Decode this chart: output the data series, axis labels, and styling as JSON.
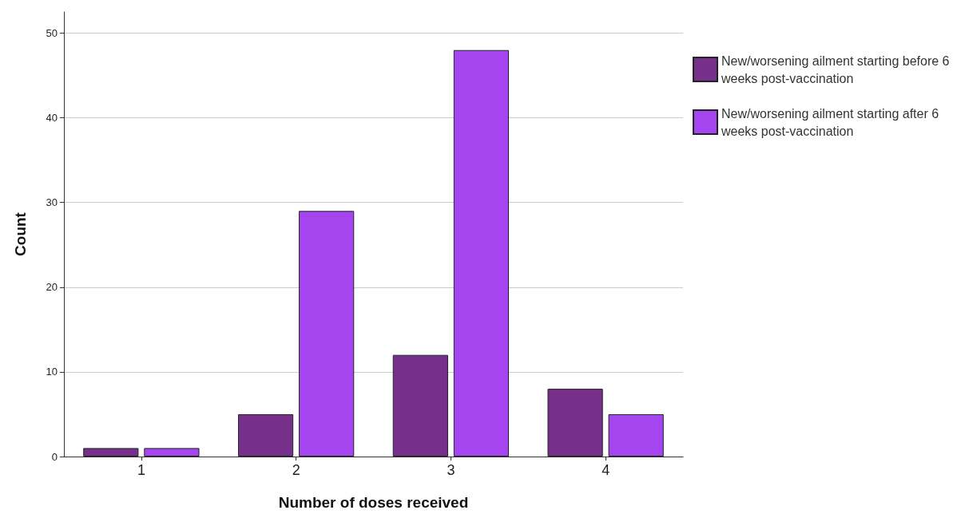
{
  "chart_data": {
    "type": "bar",
    "xlabel": "Number of doses received",
    "ylabel": "Count",
    "categories": [
      "1",
      "2",
      "3",
      "4"
    ],
    "series": [
      {
        "name": "New/worsening ailment starting before 6 weeks post-vaccination",
        "color": "#772f8c",
        "values": [
          1,
          5,
          12,
          8
        ]
      },
      {
        "name": "New/worsening ailment starting after 6 weeks post-vaccination",
        "color": "#a545f0",
        "values": [
          1,
          29,
          48,
          5
        ]
      }
    ],
    "ylim": [
      0,
      52.5
    ],
    "yticks": [
      0,
      10,
      20,
      30,
      40,
      50
    ],
    "grid": "y",
    "legend": "top right"
  }
}
